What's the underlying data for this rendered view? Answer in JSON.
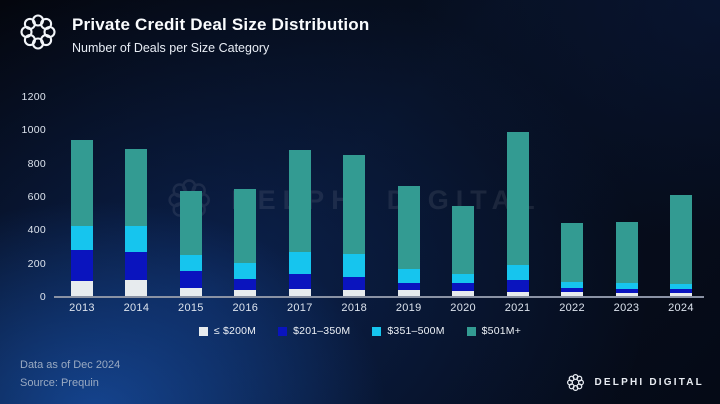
{
  "header": {
    "title": "Private Credit Deal Size Distribution",
    "subtitle": "Number of Deals per Size Category"
  },
  "watermark": {
    "brand": "DELPHI DIGITAL"
  },
  "footer": {
    "data_as_of": "Data as of Dec 2024",
    "source": "Source: Prequin",
    "brand": "DELPHI DIGITAL"
  },
  "colors": {
    "background_navy": "#071022",
    "background_glow_blue": "#1C60C6",
    "axis_line": "#8A92A4",
    "tick_text": "#DCE3ED",
    "seg_under_200m": "#E7EBEE",
    "seg_201_350m": "#0A14BE",
    "seg_351_500m": "#16C5EE",
    "seg_501m_plus": "#339B92"
  },
  "chart_data": {
    "type": "bar",
    "stacked": true,
    "title": "Private Credit Deal Size Distribution",
    "subtitle": "Number of Deals per Size Category",
    "xlabel": "",
    "ylabel": "Number of Deals",
    "ylim": [
      0,
      1200
    ],
    "yticks": [
      0,
      200,
      400,
      600,
      800,
      1000,
      1200
    ],
    "grid": false,
    "legend_position": "bottom",
    "categories": [
      "2013",
      "2014",
      "2015",
      "2016",
      "2017",
      "2018",
      "2019",
      "2020",
      "2021",
      "2022",
      "2023",
      "2024"
    ],
    "series": [
      {
        "name": "≤ $200M",
        "color": "#E7EBEE",
        "values": [
          95,
          105,
          55,
          40,
          50,
          40,
          45,
          38,
          30,
          30,
          25,
          25
        ]
      },
      {
        "name": "$201–350M",
        "color": "#0A14BE",
        "values": [
          190,
          165,
          100,
          70,
          90,
          80,
          40,
          48,
          75,
          25,
          25,
          25
        ]
      },
      {
        "name": "$351–500M",
        "color": "#16C5EE",
        "values": [
          140,
          155,
          95,
          95,
          130,
          140,
          85,
          50,
          85,
          35,
          35,
          30
        ]
      },
      {
        "name": "$501M+",
        "color": "#339B92",
        "values": [
          515,
          465,
          385,
          445,
          615,
          595,
          495,
          410,
          800,
          355,
          365,
          535
        ]
      }
    ],
    "totals": [
      940,
      890,
      635,
      650,
      885,
      855,
      665,
      546,
      990,
      445,
      450,
      615
    ]
  }
}
